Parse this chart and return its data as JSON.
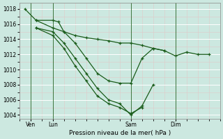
{
  "background_color": "#cce8e0",
  "grid_color": "#b8d8d0",
  "line_color": "#1a5c1a",
  "xlabel": "Pression niveau de la mer( hPa )",
  "ylim": [
    1003.5,
    1018.8
  ],
  "yticks": [
    1004,
    1006,
    1008,
    1010,
    1012,
    1014,
    1016,
    1018
  ],
  "xlim": [
    0,
    18
  ],
  "xtick_positions": [
    1,
    3,
    10,
    14
  ],
  "xtick_labels": [
    "Ven",
    "Lun",
    "Sam",
    "Dim"
  ],
  "vlines": [
    1,
    3,
    10,
    14
  ],
  "series": [
    {
      "x": [
        0.5,
        1.5,
        3,
        4,
        5,
        6,
        7,
        8,
        9,
        10,
        11,
        12,
        13,
        14,
        15,
        16,
        17
      ],
      "y": [
        1018,
        1016.5,
        1015.5,
        1015.0,
        1014.5,
        1014.2,
        1014.0,
        1013.8,
        1013.5,
        1013.5,
        1013.2,
        1012.8,
        1012.5,
        1011.8,
        1012.3,
        1012.0,
        1012.0
      ]
    },
    {
      "x": [
        1.5,
        3,
        3.5,
        4,
        5,
        6,
        7,
        8,
        9,
        10,
        11,
        12,
        13
      ],
      "y": [
        1016.5,
        1016.5,
        1016.3,
        1015.0,
        1013.5,
        1011.5,
        1009.5,
        1008.5,
        1008.2,
        1008.2,
        1011.5,
        1012.8,
        1012.5
      ]
    },
    {
      "x": [
        1.5,
        3,
        4,
        5,
        6,
        7,
        8,
        9,
        10,
        11,
        12
      ],
      "y": [
        1015.5,
        1015.0,
        1013.5,
        1011.5,
        1009.5,
        1007.5,
        1006.0,
        1005.5,
        1004.0,
        1005.2,
        1008.0
      ]
    },
    {
      "x": [
        1.5,
        3,
        4,
        5,
        6,
        7,
        8,
        9,
        10,
        11
      ],
      "y": [
        1015.5,
        1014.5,
        1012.8,
        1010.5,
        1008.5,
        1006.5,
        1005.5,
        1005.0,
        1004.2,
        1005.0
      ]
    }
  ]
}
